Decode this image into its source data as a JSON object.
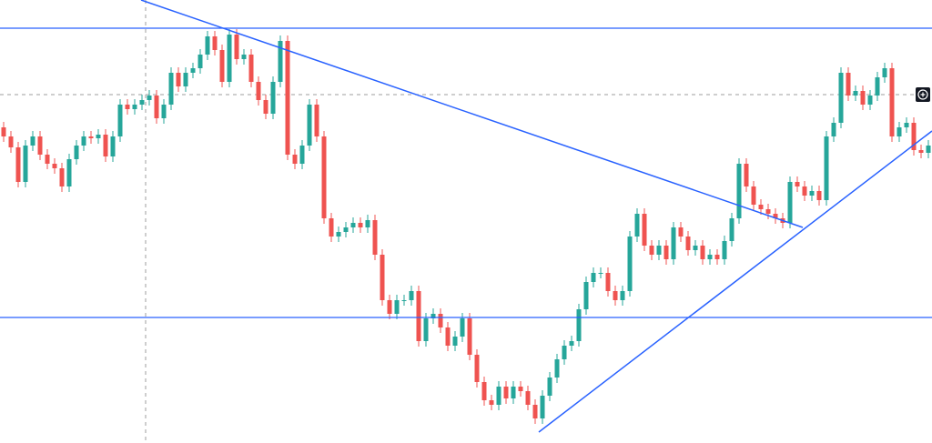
{
  "chart_data": {
    "type": "candlestick",
    "up_color": "#26a69a",
    "down_color": "#ef5350",
    "line_color": "#2962ff",
    "ylim": [
      0,
      487
    ],
    "open": [
      347,
      337,
      325,
      287,
      327,
      337,
      317,
      307,
      302,
      282,
      312,
      327,
      337,
      335,
      339,
      315,
      337,
      372,
      367,
      372,
      377,
      382,
      357,
      372,
      407,
      392,
      407,
      412,
      427,
      447,
      432,
      397,
      449,
      422,
      427,
      397,
      377,
      362,
      397,
      442,
      317,
      307,
      327,
      372,
      337,
      247,
      227,
      232,
      237,
      242,
      237,
      245,
      207,
      157,
      142,
      157,
      157,
      167,
      112,
      137,
      142,
      127,
      107,
      117,
      137,
      97,
      67,
      47,
      42,
      62,
      49,
      62,
      57,
      42,
      27,
      52,
      72,
      92,
      107,
      112,
      147,
      177,
      187,
      187,
      167,
      157,
      167,
      227,
      252,
      217,
      207,
      217,
      202,
      237,
      227,
      212,
      217,
      202,
      207,
      202,
      222,
      247,
      307,
      282,
      262,
      257,
      252,
      247,
      242,
      287,
      282,
      272,
      277,
      267,
      337,
      352,
      407,
      382,
      387,
      372,
      382,
      402,
      412,
      337,
      347,
      352,
      322,
      319
    ],
    "high": [
      353,
      343,
      331,
      333,
      343,
      343,
      323,
      313,
      308,
      318,
      333,
      343,
      343,
      345,
      345,
      343,
      378,
      378,
      378,
      383,
      388,
      388,
      378,
      413,
      413,
      413,
      418,
      433,
      453,
      453,
      438,
      455,
      455,
      433,
      433,
      403,
      383,
      403,
      448,
      448,
      323,
      333,
      378,
      378,
      343,
      253,
      238,
      243,
      248,
      248,
      251,
      251,
      213,
      163,
      163,
      163,
      173,
      173,
      143,
      148,
      148,
      133,
      123,
      143,
      143,
      103,
      73,
      53,
      68,
      68,
      68,
      68,
      63,
      48,
      58,
      78,
      98,
      113,
      118,
      153,
      183,
      193,
      193,
      193,
      173,
      173,
      233,
      258,
      258,
      223,
      223,
      223,
      243,
      243,
      233,
      223,
      223,
      213,
      213,
      228,
      253,
      313,
      313,
      288,
      268,
      263,
      258,
      253,
      293,
      293,
      288,
      283,
      283,
      343,
      358,
      413,
      413,
      393,
      393,
      388,
      408,
      418,
      418,
      353,
      358,
      358,
      328,
      333
    ],
    "low": [
      331,
      319,
      281,
      281,
      321,
      311,
      301,
      296,
      276,
      276,
      306,
      321,
      329,
      329,
      309,
      309,
      331,
      361,
      361,
      366,
      371,
      351,
      351,
      366,
      386,
      386,
      401,
      406,
      421,
      426,
      391,
      391,
      416,
      416,
      391,
      371,
      356,
      356,
      391,
      311,
      301,
      301,
      321,
      331,
      241,
      221,
      221,
      226,
      231,
      231,
      231,
      201,
      151,
      136,
      136,
      151,
      151,
      106,
      106,
      131,
      121,
      101,
      101,
      111,
      91,
      61,
      41,
      36,
      36,
      43,
      43,
      51,
      36,
      21,
      21,
      46,
      66,
      86,
      101,
      106,
      141,
      171,
      181,
      161,
      151,
      151,
      161,
      221,
      211,
      201,
      201,
      196,
      196,
      221,
      206,
      206,
      196,
      196,
      196,
      196,
      216,
      241,
      276,
      256,
      251,
      246,
      241,
      236,
      236,
      276,
      266,
      266,
      261,
      261,
      331,
      346,
      376,
      376,
      366,
      366,
      376,
      396,
      331,
      331,
      341,
      316,
      313,
      313
    ],
    "close": [
      337,
      325,
      287,
      327,
      337,
      317,
      307,
      302,
      282,
      312,
      327,
      337,
      335,
      339,
      315,
      337,
      372,
      367,
      372,
      377,
      382,
      357,
      372,
      407,
      392,
      407,
      412,
      427,
      447,
      432,
      397,
      449,
      422,
      427,
      397,
      377,
      362,
      397,
      442,
      317,
      307,
      327,
      372,
      337,
      247,
      227,
      232,
      237,
      242,
      237,
      245,
      207,
      157,
      142,
      157,
      157,
      167,
      112,
      137,
      142,
      127,
      107,
      117,
      137,
      97,
      67,
      47,
      42,
      62,
      49,
      62,
      57,
      42,
      27,
      52,
      72,
      92,
      107,
      112,
      147,
      177,
      187,
      187,
      167,
      157,
      167,
      227,
      252,
      217,
      207,
      217,
      202,
      237,
      227,
      212,
      217,
      202,
      207,
      202,
      222,
      247,
      307,
      282,
      262,
      257,
      252,
      247,
      242,
      287,
      282,
      272,
      277,
      267,
      337,
      352,
      407,
      382,
      387,
      372,
      382,
      402,
      412,
      337,
      347,
      352,
      322,
      319,
      327
    ],
    "levels": [
      456,
      138
    ],
    "trend_lines": [
      {
        "x": [
          18.875,
          109.75
        ],
        "y": [
          487,
          237
        ]
      },
      {
        "x": [
          73.5,
          127.5
        ],
        "y": [
          12,
          343
        ]
      }
    ]
  }
}
